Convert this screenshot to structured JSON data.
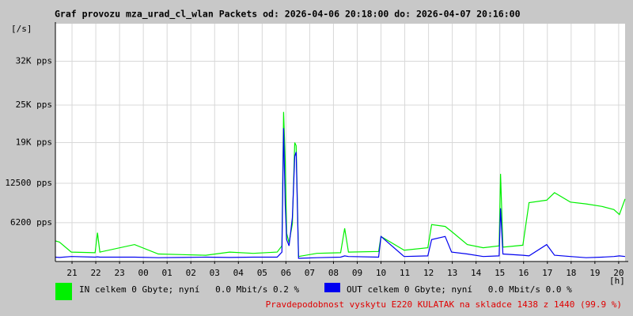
{
  "chart_data": {
    "type": "line",
    "title": "Graf provozu mza_urad_cl_wlan Packets od: 2026-04-06 20:18:00 do: 2026-04-07 20:16:00",
    "y_unit": "[/s]",
    "x_unit": "[h]",
    "footer": "Pravdepodobnost vyskytu E220 KULATAK na skladce 1438 z 1440 (99.9 %)",
    "grid": true,
    "xlim": [
      20.3,
      44.27
    ],
    "ylim": [
      0,
      38000
    ],
    "xticks": [
      {
        "value": 21,
        "label": "21"
      },
      {
        "value": 22,
        "label": "22"
      },
      {
        "value": 23,
        "label": "23"
      },
      {
        "value": 24,
        "label": "00"
      },
      {
        "value": 25,
        "label": "01"
      },
      {
        "value": 26,
        "label": "02"
      },
      {
        "value": 27,
        "label": "03"
      },
      {
        "value": 28,
        "label": "04"
      },
      {
        "value": 29,
        "label": "05"
      },
      {
        "value": 30,
        "label": "06"
      },
      {
        "value": 31,
        "label": "07"
      },
      {
        "value": 32,
        "label": "08"
      },
      {
        "value": 33,
        "label": "09"
      },
      {
        "value": 34,
        "label": "10"
      },
      {
        "value": 35,
        "label": "11"
      },
      {
        "value": 36,
        "label": "12"
      },
      {
        "value": 37,
        "label": "13"
      },
      {
        "value": 38,
        "label": "14"
      },
      {
        "value": 39,
        "label": "15"
      },
      {
        "value": 40,
        "label": "16"
      },
      {
        "value": 41,
        "label": "17"
      },
      {
        "value": 42,
        "label": "18"
      },
      {
        "value": 43,
        "label": "19"
      },
      {
        "value": 44,
        "label": "20"
      }
    ],
    "yticks": [
      {
        "value": 6200,
        "label": "6200 pps"
      },
      {
        "value": 12500,
        "label": "12500 pps"
      },
      {
        "value": 19000,
        "label": "19K pps"
      },
      {
        "value": 25000,
        "label": "25K pps"
      },
      {
        "value": 32000,
        "label": "32K pps"
      }
    ],
    "x": [
      20.3,
      20.47,
      20.97,
      21.97,
      22.07,
      22.17,
      23.63,
      24.63,
      25.63,
      26.63,
      27.63,
      28.63,
      29.63,
      29.83,
      29.9,
      29.97,
      30.03,
      30.13,
      30.27,
      30.37,
      30.43,
      30.53,
      31.3,
      32.3,
      32.47,
      32.63,
      33.9,
      34.0,
      34.97,
      35.97,
      36.13,
      36.7,
      36.97,
      37.63,
      38.3,
      38.97,
      39.03,
      39.13,
      39.97,
      40.23,
      40.97,
      41.3,
      41.97,
      42.63,
      43.3,
      43.8,
      44.03,
      44.27
    ],
    "series": [
      {
        "name": "IN celkem 0 Gbyte; nyní   0.0 Mbit/s 0.2 %",
        "color": "#00f000",
        "values": [
          3300,
          3100,
          1500,
          1400,
          4600,
          1500,
          2700,
          1200,
          1100,
          1000,
          1500,
          1300,
          1500,
          2500,
          23900,
          16000,
          4500,
          3000,
          6000,
          19000,
          18500,
          800,
          1300,
          1400,
          5300,
          1500,
          1600,
          4000,
          1800,
          2200,
          5900,
          5600,
          4800,
          2700,
          2200,
          2500,
          14000,
          2300,
          2600,
          9400,
          9800,
          11000,
          9500,
          9200,
          8800,
          8300,
          7500,
          10000
        ]
      },
      {
        "name": "OUT celkem 0 Gbyte; nyní   0.0 Mbit/s 0.0 %",
        "color": "#0000f0",
        "values": [
          700,
          650,
          800,
          700,
          750,
          700,
          700,
          600,
          650,
          700,
          650,
          700,
          700,
          1500,
          21300,
          9000,
          3500,
          2500,
          7000,
          16800,
          17500,
          500,
          600,
          700,
          900,
          800,
          700,
          4000,
          800,
          900,
          3500,
          4000,
          1500,
          1200,
          800,
          900,
          8500,
          1200,
          1000,
          900,
          2700,
          1000,
          800,
          600,
          700,
          800,
          900,
          800
        ]
      }
    ]
  }
}
